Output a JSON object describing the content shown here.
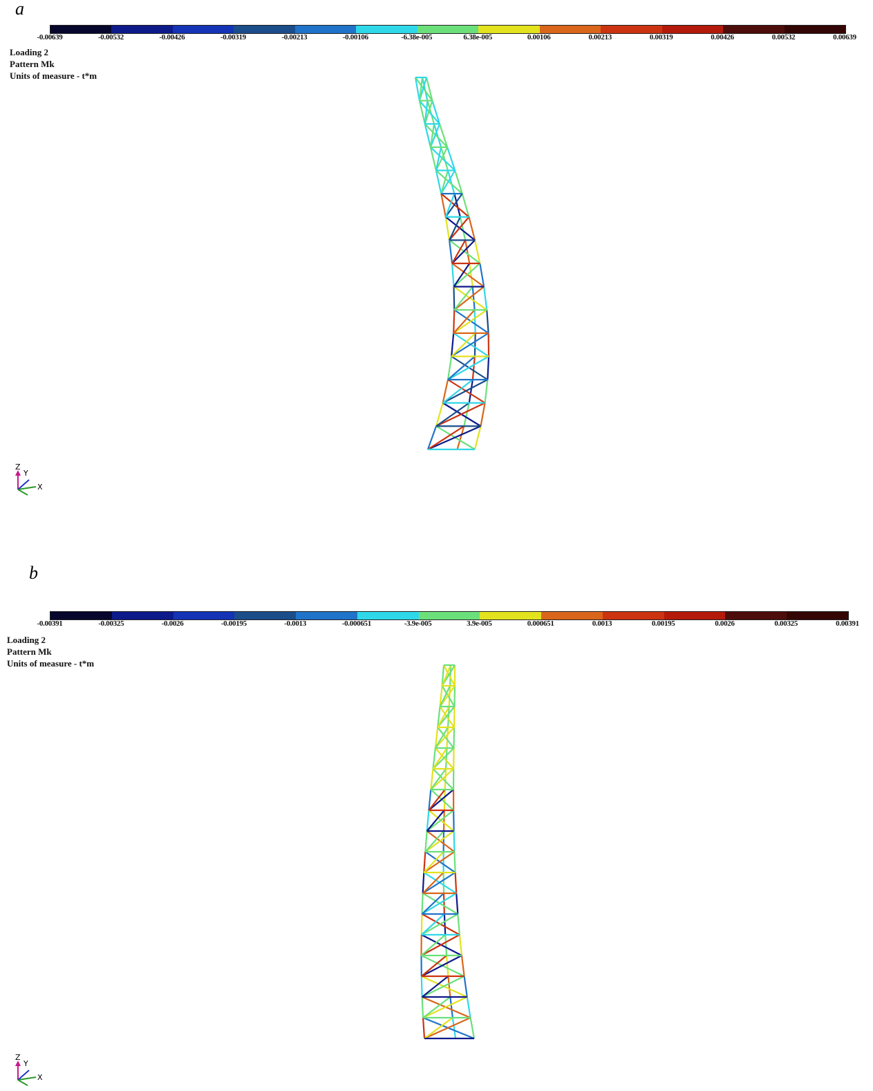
{
  "panels": [
    {
      "letter": "a",
      "scale_colors": [
        "#07072e",
        "#0d1a8a",
        "#1433b5",
        "#1a4d8a",
        "#1f73c9",
        "#2fd8e8",
        "#6be07a",
        "#e2e21e",
        "#d9661a",
        "#cc3310",
        "#b31a0a",
        "#4d0d0a",
        "#330505"
      ],
      "scale_ticks": [
        "-0.00639",
        "-0.00532",
        "-0.00426",
        "-0.00319",
        "-0.00213",
        "-0.00106",
        "-6.38e-005",
        "6.38e-005",
        "0.00106",
        "0.00213",
        "0.00319",
        "0.00426",
        "0.00532",
        "0.00639"
      ],
      "info": [
        "Loading 2",
        "Pattern Mk",
        "Units of measure - t*m"
      ],
      "axes": {
        "z": "Z",
        "y": "Y",
        "x": "X"
      }
    },
    {
      "letter": "b",
      "scale_colors": [
        "#07072e",
        "#0d1a8a",
        "#1433b5",
        "#1a4d8a",
        "#1f73c9",
        "#2fd8e8",
        "#6be07a",
        "#e2e21e",
        "#d9661a",
        "#cc3310",
        "#b31a0a",
        "#4d0d0a",
        "#330505"
      ],
      "scale_ticks": [
        "-0.00391",
        "-0.00325",
        "-0.0026",
        "-0.00195",
        "-0.0013",
        "-0.000651",
        "-3.9e-005",
        "3.9e-005",
        "0.000651",
        "0.0013",
        "0.00195",
        "0.0026",
        "0.00325",
        "0.00391"
      ],
      "info": [
        "Loading 2",
        "Pattern Mk",
        "Units of measure - t*m"
      ],
      "axes": {
        "z": "Z",
        "y": "Y",
        "x": "X"
      }
    }
  ]
}
